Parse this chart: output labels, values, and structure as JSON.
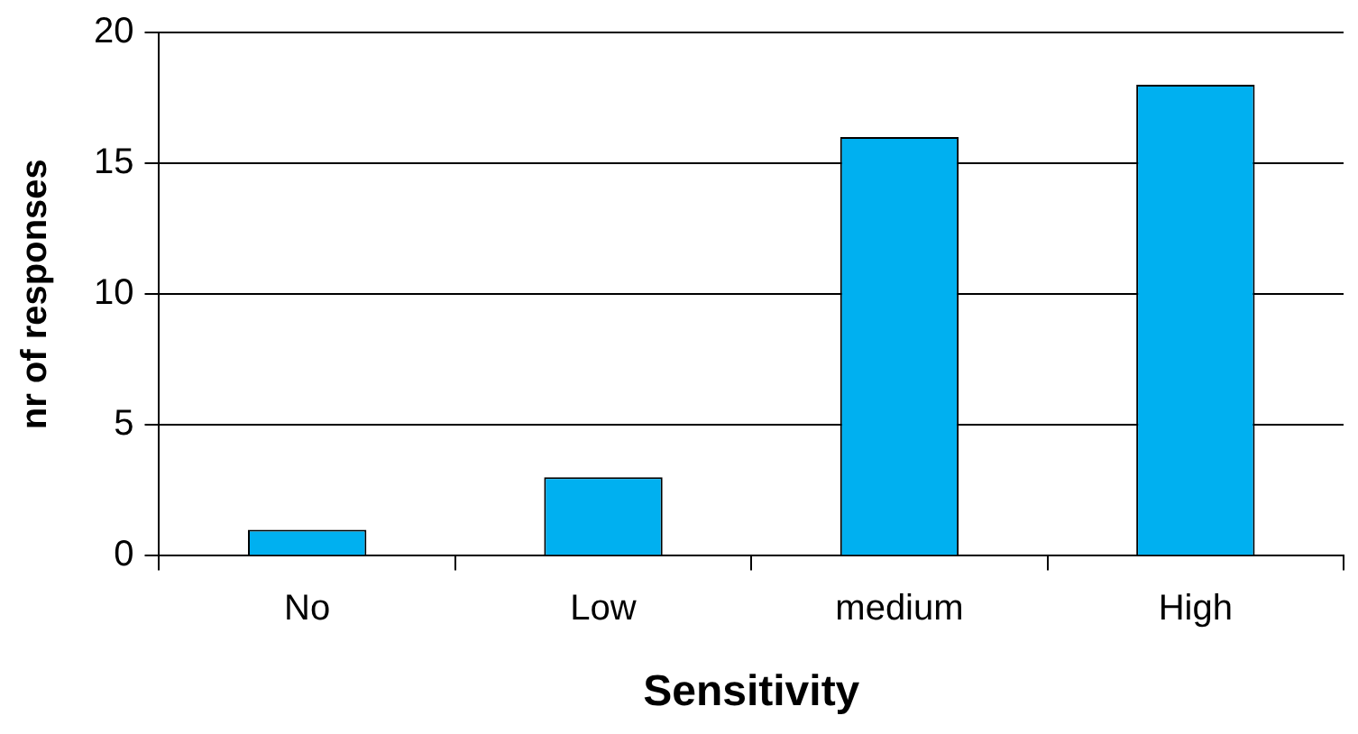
{
  "chart_data": {
    "type": "bar",
    "xlabel": "Sensitivity",
    "ylabel": "nr of responses",
    "categories": [
      "No",
      "Low",
      "medium",
      "High"
    ],
    "values": [
      1,
      3,
      16,
      18
    ],
    "color": "#00b0f0",
    "ylim": [
      0,
      20
    ],
    "yticks": [
      0,
      5,
      10,
      15,
      20
    ],
    "grid": "y",
    "legend": false
  }
}
